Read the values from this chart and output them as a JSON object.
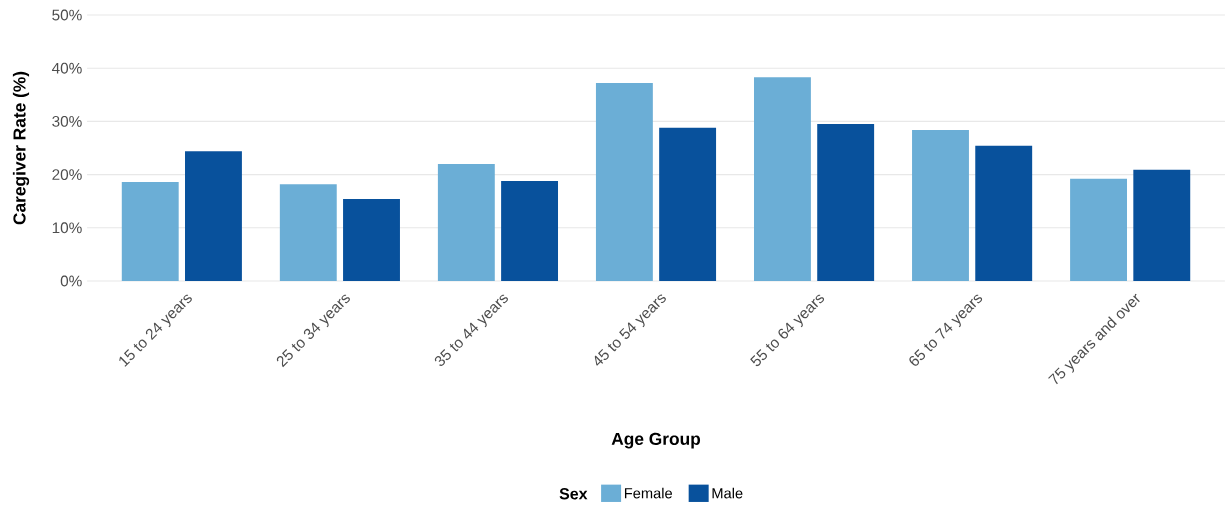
{
  "chart_data": {
    "type": "bar",
    "xlabel": "Age Group",
    "ylabel": "Caregiver Rate (%)",
    "legend_title": "Sex",
    "categories": [
      "15 to 24 years",
      "25 to 34 years",
      "35 to 44 years",
      "45 to 54 years",
      "55 to 64 years",
      "65 to 74 years",
      "75 years and over"
    ],
    "series": [
      {
        "name": "Female",
        "color": "#6baed6",
        "values": [
          18.6,
          18.2,
          22.0,
          37.2,
          38.3,
          28.4,
          19.2
        ]
      },
      {
        "name": "Male",
        "color": "#08519c",
        "values": [
          24.4,
          15.4,
          18.8,
          28.8,
          29.5,
          25.4,
          20.9
        ]
      }
    ],
    "ylim": [
      0,
      50
    ],
    "yticks": [
      {
        "value": 0,
        "label": "0%"
      },
      {
        "value": 10,
        "label": "10%"
      },
      {
        "value": 20,
        "label": "20%"
      },
      {
        "value": 30,
        "label": "30%"
      },
      {
        "value": 40,
        "label": "40%"
      },
      {
        "value": 50,
        "label": "50%"
      }
    ],
    "grid": "y",
    "legend": "bottom"
  }
}
